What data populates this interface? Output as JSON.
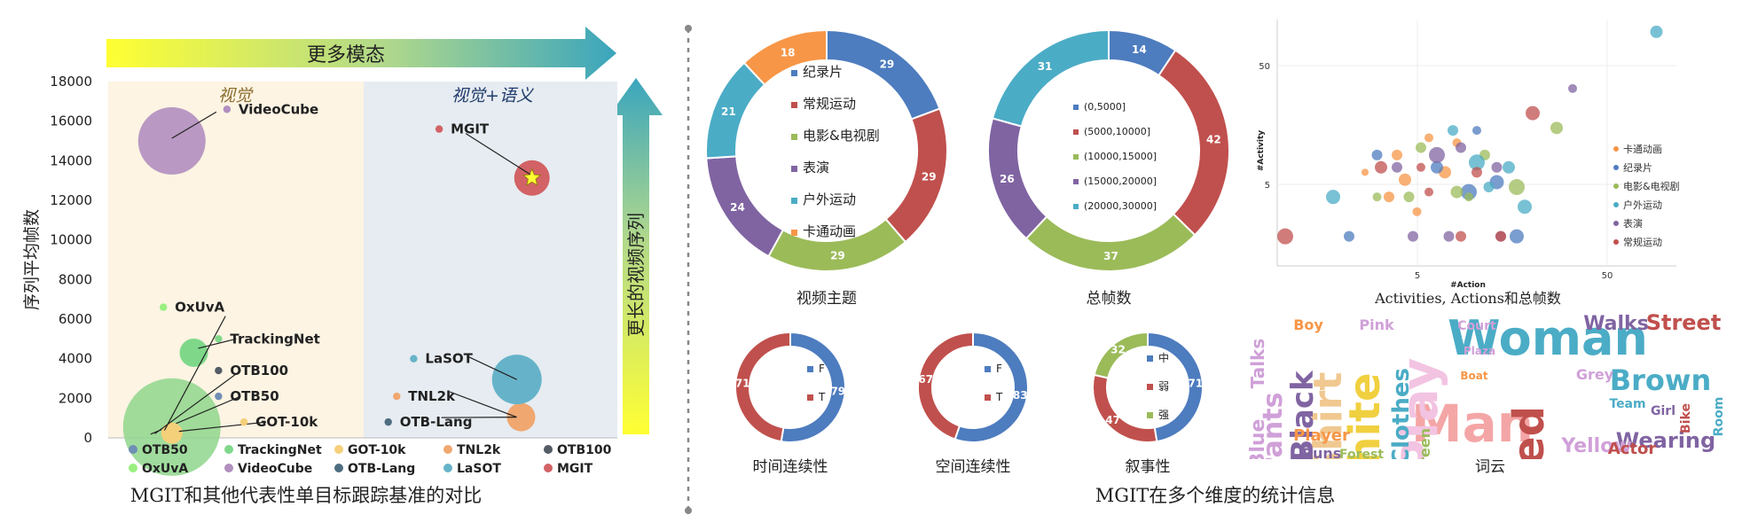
{
  "left_panel": {
    "caption": "MGIT和其他代表性单目标跟踪基准的对比",
    "more_modal_label": "更多模态",
    "longer_video_label": "更长的视频序列",
    "region_visual": "视觉",
    "region_visual_semantic": "视觉+语义",
    "arrow_color": "#2aa3b8",
    "bg_visual": "#fdf4e3",
    "bg_semantic": "#e6ecf1"
  },
  "right_panel": {
    "caption": "MGIT在多个维度的统计信息"
  },
  "chart_data": [
    {
      "id": "benchmark-comparison",
      "type": "scatter",
      "ylabel": "序列平均帧数",
      "ylim": [
        0,
        18000
      ],
      "yticks": [
        0,
        2000,
        4000,
        6000,
        8000,
        10000,
        12000,
        14000,
        16000,
        18000
      ],
      "legend_position": "bottom",
      "series": [
        {
          "name": "OTB50",
          "color": "#6f8fb5",
          "size": 14,
          "bubble": [
            0.5,
            100
          ],
          "label_at": [
            1.3,
            2100
          ],
          "label": "OTB50"
        },
        {
          "name": "TrackingNet",
          "color": "#7fd88a",
          "size": 16,
          "bubble": [
            0.8,
            4300
          ],
          "label_at": [
            1.3,
            5000
          ],
          "label": "TrackingNet"
        },
        {
          "name": "GOT-10k",
          "color": "#f5d07a",
          "size": 12,
          "bubble": [
            0.75,
            150
          ],
          "label_at": [
            1.6,
            800
          ],
          "label": "GOT-10k"
        },
        {
          "name": "TNL2k",
          "color": "#f0a770",
          "size": 16,
          "bubble": [
            4.5,
            600
          ],
          "label_at": [
            3.4,
            2100
          ],
          "label": "TNL2k"
        },
        {
          "name": "OTB100",
          "color": "#555c66",
          "size": 12,
          "bubble": [
            0.55,
            120
          ],
          "label_at": [
            1.3,
            3400
          ],
          "label": "OTB100"
        },
        {
          "name": "OxUvA",
          "color": "#99f07f",
          "size": 14,
          "bubble": [
            0.6,
            200
          ],
          "label_at": [
            0.65,
            6600
          ],
          "label": "OxUvA"
        },
        {
          "name": "VideoCube",
          "color": "#b18fbf",
          "size": 38,
          "bubble": [
            0.75,
            15000
          ],
          "label_at": [
            1.4,
            16600
          ],
          "label": "VideoCube"
        },
        {
          "name": "OTB-Lang",
          "color": "#4d6d80",
          "size": 13,
          "bubble": [
            4.5,
            600
          ],
          "label_at": [
            3.3,
            800
          ],
          "label": "OTB-Lang"
        },
        {
          "name": "LaSOT",
          "color": "#66b3c9",
          "size": 28,
          "bubble": [
            4.45,
            2500
          ],
          "label_at": [
            3.6,
            4000
          ],
          "label": "LaSOT"
        },
        {
          "name": "MGIT",
          "color": "#d26265",
          "size": 20,
          "bubble": [
            4.45,
            13400
          ],
          "label_at": [
            3.9,
            15600
          ],
          "label": "MGIT"
        }
      ],
      "big_green_bubble": {
        "x": 0.75,
        "y": 100,
        "size": 55,
        "color": "#8fd68c"
      }
    },
    {
      "id": "video-theme-donut",
      "type": "pie",
      "title": "视频主题",
      "segments": [
        {
          "label": "纪录片",
          "value": 29,
          "color": "#4d7cbf"
        },
        {
          "label": "常规运动",
          "value": 29,
          "color": "#c0504d"
        },
        {
          "label": "电影&电视剧",
          "value": 29,
          "color": "#9bbb59"
        },
        {
          "label": "表演",
          "value": 24,
          "color": "#8064a2"
        },
        {
          "label": "户外运动",
          "value": 21,
          "color": "#4bacc6"
        },
        {
          "label": "卡通动画",
          "value": 18,
          "color": "#f79646"
        }
      ]
    },
    {
      "id": "total-frames-donut",
      "type": "pie",
      "title": "总帧数",
      "segments": [
        {
          "label": "(0,5000]",
          "value": 14,
          "color": "#4d7cbf"
        },
        {
          "label": "(5000,10000]",
          "value": 42,
          "color": "#c0504d"
        },
        {
          "label": "(10000,15000]",
          "value": 37,
          "color": "#9bbb59"
        },
        {
          "label": "(15000,20000]",
          "value": 26,
          "color": "#8064a2"
        },
        {
          "label": "(20000,30000]",
          "value": 31,
          "color": "#4bacc6"
        }
      ]
    },
    {
      "id": "activity-action-scatter",
      "type": "scatter",
      "xlabel": "#Action",
      "ylabel": "#Activity",
      "title": "Activities, Actions和总帧数",
      "xticks": [
        "5",
        "50"
      ],
      "yticks": [
        "5",
        "50"
      ],
      "legend_position": "right",
      "series": [
        {
          "name": "卡通动画",
          "color": "#f79646",
          "points": [
            [
              0.3,
              0.55,
              6
            ],
            [
              0.32,
              0.65,
              7
            ],
            [
              0.38,
              0.48,
              5
            ],
            [
              0.42,
              0.62,
              7
            ],
            [
              0.28,
              0.72,
              6
            ],
            [
              0.35,
              0.78,
              5
            ],
            [
              0.45,
              0.5,
              5
            ],
            [
              0.22,
              0.62,
              4
            ]
          ]
        },
        {
          "name": "纪录片",
          "color": "#4d7cbf",
          "points": [
            [
              0.4,
              0.6,
              7
            ],
            [
              0.48,
              0.7,
              9
            ],
            [
              0.55,
              0.66,
              8
            ],
            [
              0.6,
              0.88,
              8
            ],
            [
              0.25,
              0.55,
              6
            ],
            [
              0.18,
              0.88,
              6
            ],
            [
              0.5,
              0.45,
              5
            ]
          ]
        },
        {
          "name": "电影&电视剧",
          "color": "#9bbb59",
          "points": [
            [
              0.36,
              0.52,
              6
            ],
            [
              0.45,
              0.7,
              7
            ],
            [
              0.52,
              0.55,
              6
            ],
            [
              0.6,
              0.68,
              9
            ],
            [
              0.7,
              0.44,
              7
            ],
            [
              0.33,
              0.72,
              6
            ],
            [
              0.25,
              0.72,
              5
            ],
            [
              0.48,
              0.72,
              5
            ]
          ]
        },
        {
          "name": "户外运动",
          "color": "#4bacc6",
          "points": [
            [
              0.14,
              0.72,
              8
            ],
            [
              0.44,
              0.45,
              6
            ],
            [
              0.5,
              0.58,
              9
            ],
            [
              0.58,
              0.6,
              7
            ],
            [
              0.62,
              0.76,
              8
            ],
            [
              0.53,
              0.68,
              6
            ],
            [
              0.95,
              0.05,
              7
            ]
          ]
        },
        {
          "name": "表演",
          "color": "#8064a2",
          "points": [
            [
              0.4,
              0.55,
              9
            ],
            [
              0.3,
              0.6,
              6
            ],
            [
              0.46,
              0.52,
              6
            ],
            [
              0.55,
              0.6,
              6
            ],
            [
              0.74,
              0.28,
              5
            ],
            [
              0.56,
              0.88,
              6
            ],
            [
              0.43,
              0.88,
              6
            ],
            [
              0.34,
              0.88,
              6
            ]
          ]
        },
        {
          "name": "常规运动",
          "color": "#c0504d",
          "points": [
            [
              0.26,
              0.6,
              7
            ],
            [
              0.36,
              0.6,
              5
            ],
            [
              0.5,
              0.62,
              6
            ],
            [
              0.64,
              0.38,
              8
            ],
            [
              0.02,
              0.88,
              9
            ],
            [
              0.46,
              0.88,
              6
            ],
            [
              0.56,
              0.88,
              6
            ],
            [
              0.38,
              0.7,
              5
            ]
          ]
        }
      ]
    },
    {
      "id": "temporal-continuity-donut",
      "type": "pie",
      "title": "时间连续性",
      "segments": [
        {
          "label": "F",
          "value": 79,
          "color": "#4d7cbf"
        },
        {
          "label": "T",
          "value": 71,
          "color": "#c0504d"
        }
      ]
    },
    {
      "id": "spatial-continuity-donut",
      "type": "pie",
      "title": "空间连续性",
      "segments": [
        {
          "label": "F",
          "value": 83,
          "color": "#4d7cbf"
        },
        {
          "label": "T",
          "value": 67,
          "color": "#c0504d"
        }
      ]
    },
    {
      "id": "narrative-donut",
      "type": "pie",
      "title": "叙事性",
      "segments": [
        {
          "label": "中",
          "value": 71,
          "color": "#4d7cbf"
        },
        {
          "label": "弱",
          "value": 47,
          "color": "#c0504d"
        },
        {
          "label": "强",
          "value": 32,
          "color": "#9bbb59"
        }
      ]
    }
  ],
  "wordcloud": {
    "title": "词云",
    "words": [
      {
        "text": "Woman",
        "color": "#4bacc6",
        "size": 54,
        "x": 1745,
        "y": 400
      },
      {
        "text": "Man",
        "color": "#f4a6a6",
        "size": 58,
        "x": 1660,
        "y": 498
      },
      {
        "text": "White",
        "color": "#f0d040",
        "size": 48,
        "x": 1555,
        "y": 500,
        "rot": -90
      },
      {
        "text": "Play",
        "color": "#f2c4e2",
        "size": 56,
        "x": 1620,
        "y": 470,
        "rot": -90
      },
      {
        "text": "Shirt",
        "color": "#f0c890",
        "size": 44,
        "x": 1512,
        "y": 480,
        "rot": -90
      },
      {
        "text": "Red",
        "color": "#c0504d",
        "size": 48,
        "x": 1740,
        "y": 510,
        "rot": -90
      },
      {
        "text": "Brown",
        "color": "#4bacc6",
        "size": 32,
        "x": 1872,
        "y": 440
      },
      {
        "text": "Black",
        "color": "#8064a2",
        "size": 34,
        "x": 1480,
        "y": 470,
        "rot": -90
      },
      {
        "text": "Clothes",
        "color": "#4bacc6",
        "size": 26,
        "x": 1588,
        "y": 470,
        "rot": -90
      },
      {
        "text": "Pants",
        "color": "#d0a0d8",
        "size": 30,
        "x": 1445,
        "y": 490,
        "rot": -90
      },
      {
        "text": "Street",
        "color": "#c0504d",
        "size": 24,
        "x": 1898,
        "y": 372
      },
      {
        "text": "Walks",
        "color": "#8064a2",
        "size": 22,
        "x": 1822,
        "y": 372
      },
      {
        "text": "Wearing",
        "color": "#8064a2",
        "size": 24,
        "x": 1878,
        "y": 505
      },
      {
        "text": "Yellow",
        "color": "#d0a0d8",
        "size": 22,
        "x": 1800,
        "y": 510
      },
      {
        "text": "Blue",
        "color": "#d0a0d8",
        "size": 22,
        "x": 1425,
        "y": 500,
        "rot": -90
      },
      {
        "text": "Talks",
        "color": "#d0a0d8",
        "size": 20,
        "x": 1425,
        "y": 410,
        "rot": -90
      },
      {
        "text": "Player",
        "color": "#f79646",
        "size": 18,
        "x": 1490,
        "y": 497
      },
      {
        "text": "Actor",
        "color": "#c0504d",
        "size": 18,
        "x": 1840,
        "y": 512
      },
      {
        "text": "Green",
        "color": "#9bbb59",
        "size": 16,
        "x": 1612,
        "y": 510,
        "rot": -90
      },
      {
        "text": "Grey",
        "color": "#d0a0d8",
        "size": 16,
        "x": 1798,
        "y": 428
      },
      {
        "text": "Table",
        "color": "#f79646",
        "size": 14,
        "x": 1420,
        "y": 540,
        "rot": -90
      },
      {
        "text": "Runs",
        "color": "#8064a2",
        "size": 16,
        "x": 1490,
        "y": 517
      },
      {
        "text": "Forest",
        "color": "#9bbb59",
        "size": 14,
        "x": 1535,
        "y": 517
      },
      {
        "text": "Court",
        "color": "#d0a0d8",
        "size": 14,
        "x": 1665,
        "y": 372
      },
      {
        "text": "Team",
        "color": "#4bacc6",
        "size": 14,
        "x": 1835,
        "y": 460
      },
      {
        "text": "Room",
        "color": "#4bacc6",
        "size": 14,
        "x": 1942,
        "y": 470,
        "rot": -90
      },
      {
        "text": "Bike",
        "color": "#c0504d",
        "size": 14,
        "x": 1905,
        "y": 472,
        "rot": -90
      },
      {
        "text": "Boy",
        "color": "#f79646",
        "size": 16,
        "x": 1475,
        "y": 372
      },
      {
        "text": "Pink",
        "color": "#d0a0d8",
        "size": 16,
        "x": 1552,
        "y": 372
      },
      {
        "text": "Girl",
        "color": "#8064a2",
        "size": 14,
        "x": 1875,
        "y": 468
      },
      {
        "text": "Boat",
        "color": "#f79646",
        "size": 12,
        "x": 1662,
        "y": 428
      },
      {
        "text": "Plaza",
        "color": "#d0a0d8",
        "size": 12,
        "x": 1668,
        "y": 400
      }
    ]
  }
}
